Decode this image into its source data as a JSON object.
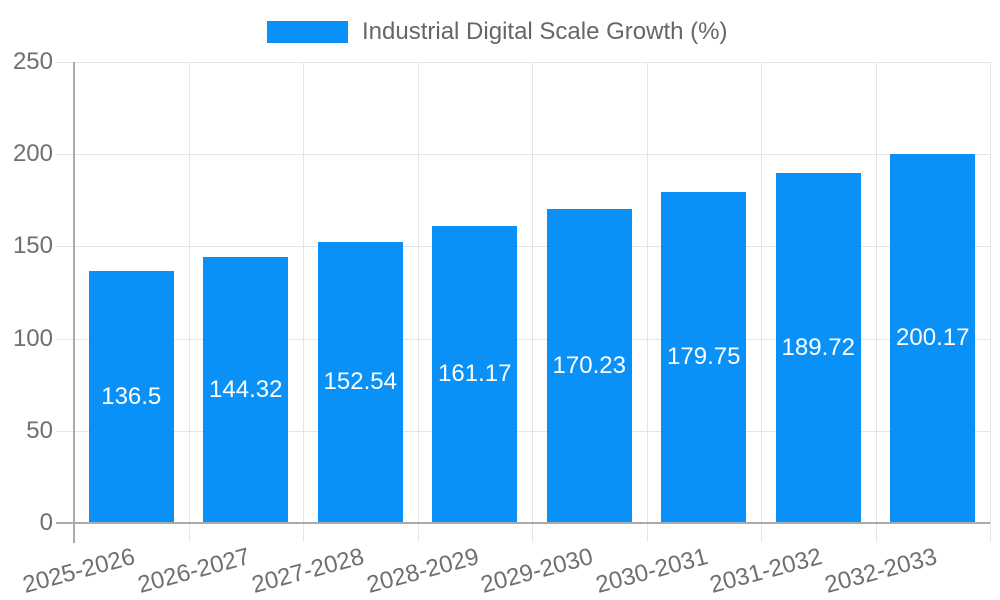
{
  "chart_data": {
    "type": "bar",
    "title": "",
    "legend": "Industrial Digital Scale Growth (%)",
    "legend_position": "top",
    "categories": [
      "2025-2026",
      "2026-2027",
      "2027-2028",
      "2028-2029",
      "2029-2030",
      "2030-2031",
      "2031-2032",
      "2032-2033"
    ],
    "values": [
      136.5,
      144.32,
      152.54,
      161.17,
      170.23,
      179.75,
      189.72,
      200.17
    ],
    "value_labels": [
      "136.5",
      "144.32",
      "152.54",
      "161.17",
      "170.23",
      "179.75",
      "189.72",
      "200.17"
    ],
    "xlabel": "",
    "ylabel": "",
    "ylim": [
      0,
      250
    ],
    "yticks": [
      0,
      50,
      100,
      150,
      200,
      250
    ],
    "grid": true,
    "colors": {
      "bar": "#0a91f8",
      "grid": "#e5e5e5",
      "axis": "#aaaaaa",
      "tick_text": "#6f6f6f",
      "legend_text": "#666666",
      "value_text": "#ffffff",
      "background": "#ffffff"
    }
  }
}
